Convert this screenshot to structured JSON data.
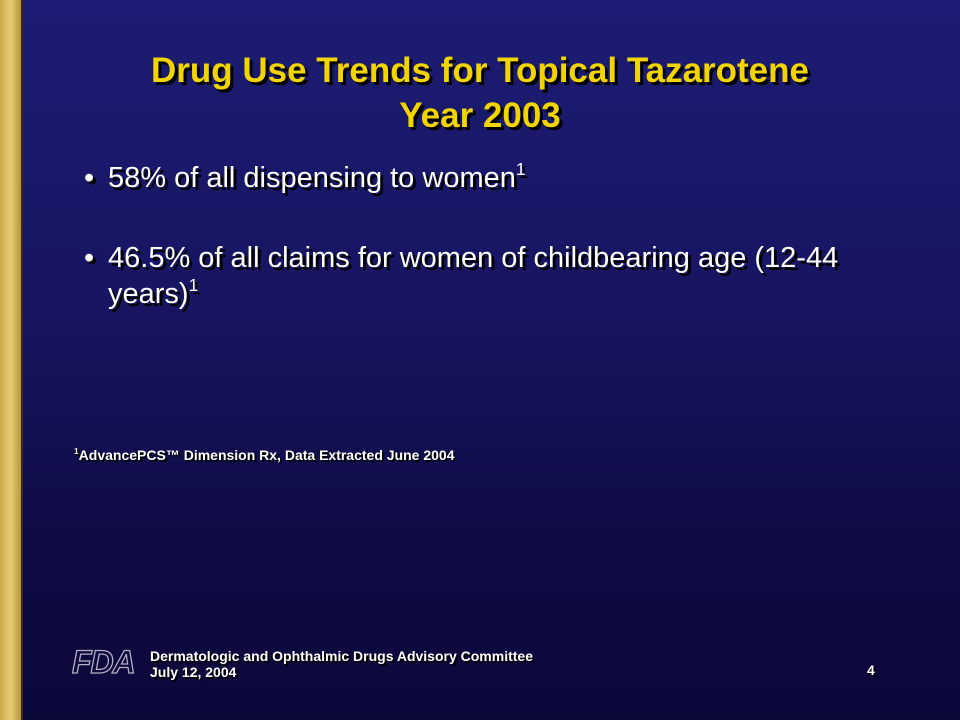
{
  "title": [
    "Drug Use Trends for Topical Tazarotene",
    "Year 2003"
  ],
  "bullets": [
    {
      "text": "58% of all dispensing to women",
      "sup": "1"
    },
    {
      "text": "46.5% of all claims for women of childbearing age (12-44 years)",
      "sup": "1"
    }
  ],
  "footnote": {
    "sup": "1",
    "text": "AdvancePCS™ Dimension Rx, Data Extracted June 2004"
  },
  "footer": {
    "logo": "FDA",
    "lines": [
      "Dermatologic and Ophthalmic Drugs Advisory Committee",
      "July 12, 2004"
    ]
  },
  "page_number": "4"
}
